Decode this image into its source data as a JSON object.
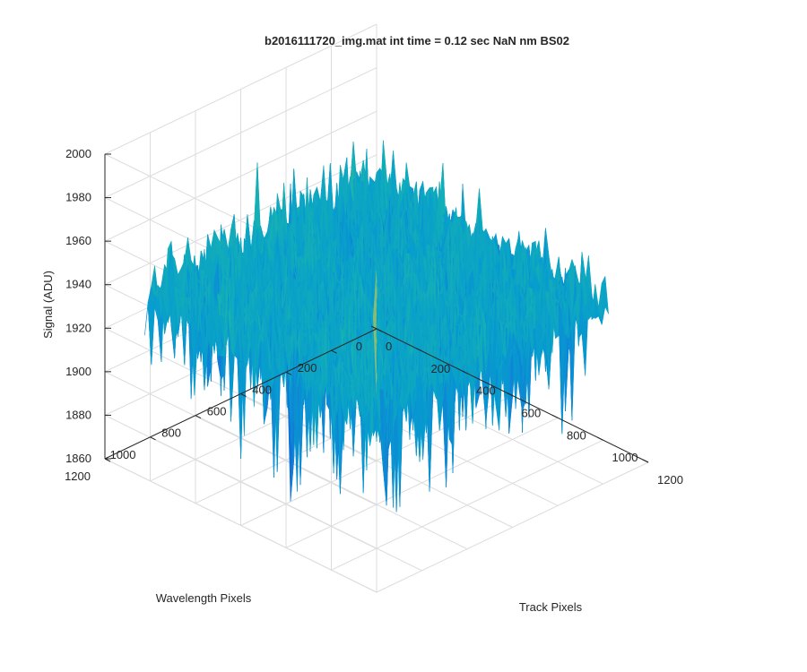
{
  "chart_data": {
    "type": "surface",
    "title": "b2016111720_img.mat int time = 0.12 sec  NaN nm BS02",
    "xlabel": "Track Pixels",
    "ylabel": "Wavelength Pixels",
    "zlabel": "Signal (ADU)",
    "xlim": [
      0,
      1200
    ],
    "ylim": [
      0,
      1200
    ],
    "zlim": [
      1860,
      2000
    ],
    "x_ticks": [
      "0",
      "200",
      "400",
      "600",
      "800",
      "1000",
      "1200"
    ],
    "y_ticks": [
      "0",
      "200",
      "400",
      "600",
      "800",
      "1000",
      "1200"
    ],
    "z_ticks": [
      "1860",
      "1880",
      "1900",
      "1920",
      "1940",
      "1960",
      "1980",
      "2000"
    ],
    "grid": true,
    "colormap": "parula",
    "surface_summary": {
      "x_extent": [
        0,
        1024
      ],
      "y_extent": [
        0,
        1024
      ],
      "typical_signal": 1925,
      "typical_range": [
        1880,
        1955
      ],
      "min_signal": 1862,
      "peak_signal": 1990
    }
  }
}
